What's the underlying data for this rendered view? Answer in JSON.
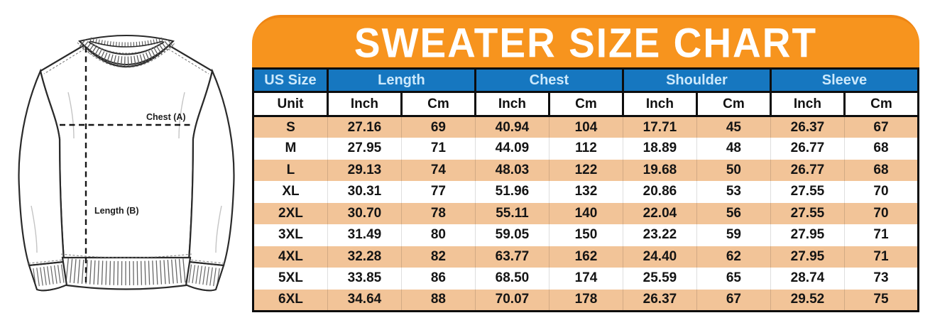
{
  "title": "SWEATER SIZE CHART",
  "diagram": {
    "chest_label": "Chest (A)",
    "length_label": "Length (B)"
  },
  "colors": {
    "banner_orange": "#F7941E",
    "header_blue": "#1677C0",
    "header_text_light_blue": "#CDE9FB",
    "row_peach": "#F2C498",
    "table_border_black": "#0d0d0d"
  },
  "chart_data": {
    "type": "table",
    "title": "SWEATER SIZE CHART",
    "column_groups": [
      "US Size",
      "Length",
      "Chest",
      "Shoulder",
      "Sleeve"
    ],
    "unit_labels": [
      "Unit",
      "Inch",
      "Cm",
      "Inch",
      "Cm",
      "Inch",
      "Cm",
      "Inch",
      "Cm"
    ],
    "columns": [
      "US Size",
      "Length Inch",
      "Length Cm",
      "Chest Inch",
      "Chest Cm",
      "Shoulder Inch",
      "Shoulder Cm",
      "Sleeve Inch",
      "Sleeve Cm"
    ],
    "rows": [
      [
        "S",
        "27.16",
        "69",
        "40.94",
        "104",
        "17.71",
        "45",
        "26.37",
        "67"
      ],
      [
        "M",
        "27.95",
        "71",
        "44.09",
        "112",
        "18.89",
        "48",
        "26.77",
        "68"
      ],
      [
        "L",
        "29.13",
        "74",
        "48.03",
        "122",
        "19.68",
        "50",
        "26.77",
        "68"
      ],
      [
        "XL",
        "30.31",
        "77",
        "51.96",
        "132",
        "20.86",
        "53",
        "27.55",
        "70"
      ],
      [
        "2XL",
        "30.70",
        "78",
        "55.11",
        "140",
        "22.04",
        "56",
        "27.55",
        "70"
      ],
      [
        "3XL",
        "31.49",
        "80",
        "59.05",
        "150",
        "23.22",
        "59",
        "27.95",
        "71"
      ],
      [
        "4XL",
        "32.28",
        "82",
        "63.77",
        "162",
        "24.40",
        "62",
        "27.95",
        "71"
      ],
      [
        "5XL",
        "33.85",
        "86",
        "68.50",
        "174",
        "25.59",
        "65",
        "28.74",
        "73"
      ],
      [
        "6XL",
        "34.64",
        "88",
        "70.07",
        "178",
        "26.37",
        "67",
        "29.52",
        "75"
      ]
    ]
  }
}
